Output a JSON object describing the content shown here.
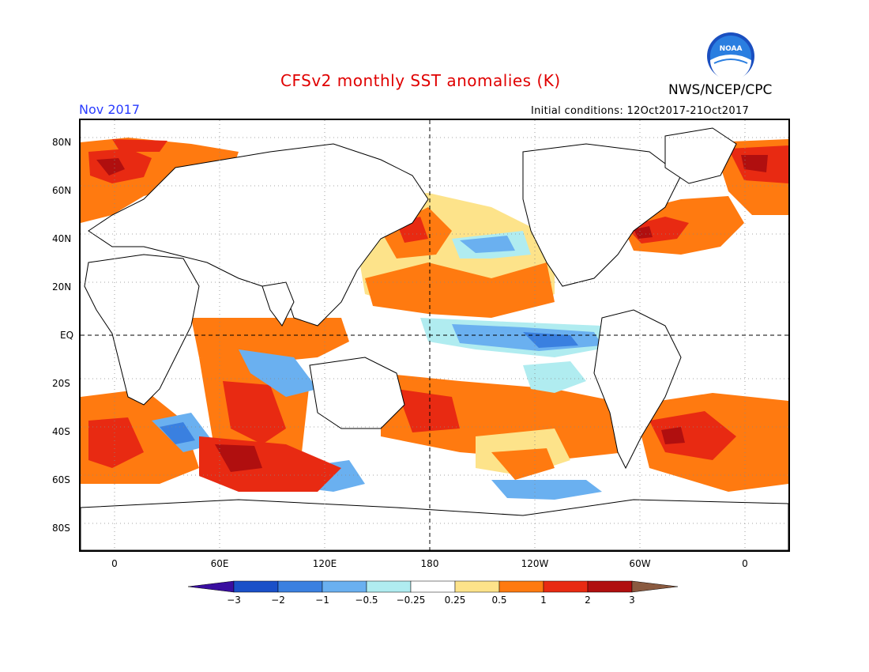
{
  "header": {
    "title": "CFSv2 monthly SST anomalies (K)",
    "agency": "NWS/NCEP/CPC",
    "month": "Nov 2017",
    "initial_conditions": "Initial conditions: 12Oct2017-21Oct2017"
  },
  "logo": {
    "icon": "noaa-logo",
    "text": "NOAA"
  },
  "map": {
    "lat_labels": [
      "80N",
      "60N",
      "40N",
      "20N",
      "EQ",
      "20S",
      "40S",
      "60S",
      "80S"
    ],
    "lon_labels": [
      "0",
      "60E",
      "120E",
      "180",
      "120W",
      "60W",
      "0"
    ],
    "colors": {
      "ocean_background": "#ffffff",
      "coastline": "#000000",
      "gridline": "#888888"
    }
  },
  "colorbar": {
    "labels": [
      "-3",
      "-2",
      "-1",
      "-0.5",
      "-0.25",
      "0.25",
      "0.5",
      "1",
      "2",
      "3"
    ],
    "colors": [
      "#3a0ea0",
      "#1a50c8",
      "#3a80e0",
      "#6ab0f0",
      "#b0ecf0",
      "#ffffff",
      "#fde38a",
      "#ff7a10",
      "#e82a12",
      "#b00f0f",
      "#8a5a40"
    ]
  }
}
